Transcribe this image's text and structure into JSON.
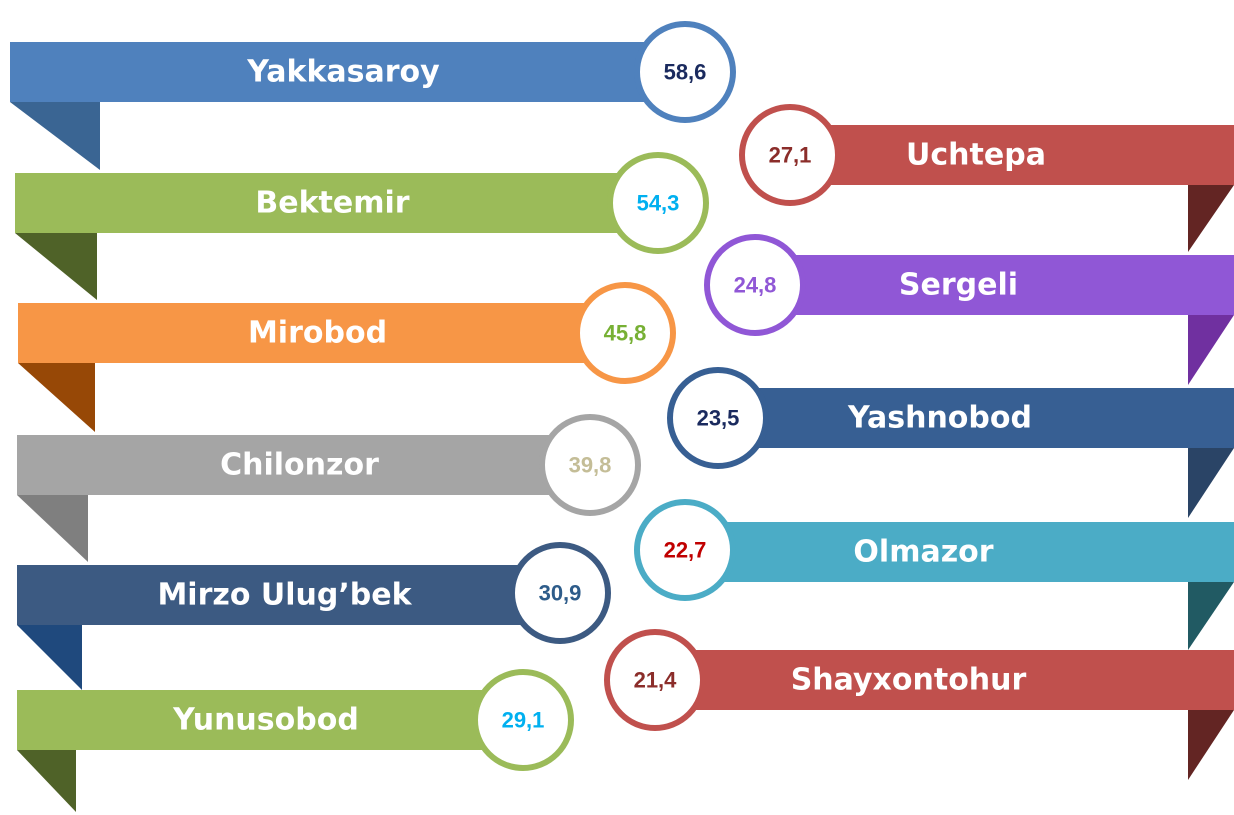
{
  "left": [
    {
      "label": "Yakkasaroy",
      "value": "58,6",
      "color": "#4f81bd",
      "fold": "#3a6593",
      "text_color": "#1a2a5e"
    },
    {
      "label": "Bektemir",
      "value": "54,3",
      "color": "#9bbb59",
      "fold": "#4f6228",
      "text_color": "#00b0f0"
    },
    {
      "label": "Mirobod",
      "value": "45,8",
      "color": "#f79646",
      "fold": "#974806",
      "text_color": "#77b034"
    },
    {
      "label": "Chilonzor",
      "value": "39,8",
      "color": "#a5a5a5",
      "fold": "#7f7f7f",
      "text_color": "#c4bd97"
    },
    {
      "label": "Mirzo Ulug’bek",
      "value": "30,9",
      "color": "#3c5a82",
      "fold": "#1f497d",
      "text_color": "#2e5c8a"
    },
    {
      "label": "Yunusobod",
      "value": "29,1",
      "color": "#9bbb59",
      "fold": "#4f6228",
      "text_color": "#00b0f0"
    }
  ],
  "right": [
    {
      "label": "Uchtepa",
      "value": "27,1",
      "color": "#c0504d",
      "fold": "#632523",
      "text_color": "#8b2d2a"
    },
    {
      "label": "Sergeli",
      "value": "24,8",
      "color": "#9057d6",
      "fold": "#7030a0",
      "text_color": "#9057d6"
    },
    {
      "label": "Yashnobod",
      "value": "23,5",
      "color": "#375f93",
      "fold": "#2a4466",
      "text_color": "#1a2a5e"
    },
    {
      "label": "Olmazor",
      "value": "22,7",
      "color": "#4bacc6",
      "fold": "#215a63",
      "text_color": "#c00000"
    },
    {
      "label": "Shayxontohur",
      "value": "21,4",
      "color": "#c0504d",
      "fold": "#632523",
      "text_color": "#8b2d2a"
    }
  ]
}
